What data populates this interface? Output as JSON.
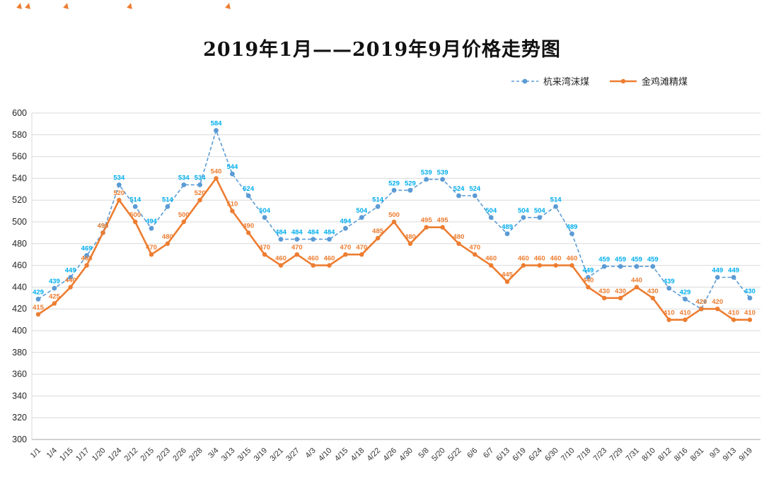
{
  "top_markers": {
    "color": "#ED7D31",
    "positions": [
      24,
      36,
      90,
      180,
      319
    ]
  },
  "chart_data": {
    "type": "line",
    "title": "2019年1月——2019年9月价格走势图",
    "categories": [
      "1/1",
      "1/4",
      "1/15",
      "1/17",
      "1/20",
      "1/24",
      "2/12",
      "2/15",
      "2/23",
      "2/26",
      "2/28",
      "3/4",
      "3/13",
      "3/15",
      "3/19",
      "3/21",
      "3/27",
      "4/3",
      "4/10",
      "4/15",
      "4/18",
      "4/22",
      "4/26",
      "4/30",
      "5/8",
      "5/20",
      "5/22",
      "6/6",
      "6/7",
      "6/13",
      "6/19",
      "6/24",
      "6/30",
      "7/10",
      "7/18",
      "7/23",
      "7/29",
      "7/31",
      "8/10",
      "8/12",
      "8/16",
      "8/31",
      "9/3",
      "9/13",
      "9/19"
    ],
    "series": [
      {
        "name": "杭来湾沫煤",
        "line_color": "#5B9BD5",
        "label_color": "#00AEEF",
        "line_style": "dashed",
        "marker": "circle",
        "values": [
          429,
          439,
          449,
          469,
          490,
          534,
          514,
          494,
          514,
          534,
          534,
          584,
          544,
          524,
          504,
          484,
          484,
          484,
          484,
          494,
          504,
          514,
          529,
          529,
          539,
          539,
          524,
          524,
          504,
          489,
          504,
          504,
          514,
          489,
          449,
          459,
          459,
          459,
          459,
          439,
          429,
          420,
          449,
          449,
          430
        ]
      },
      {
        "name": "金鸡滩精煤",
        "line_color": "#ED7D31",
        "label_color": "#ED7D31",
        "line_style": "solid",
        "marker": "circle",
        "values": [
          415,
          425,
          440,
          460,
          490,
          520,
          500,
          470,
          480,
          500,
          520,
          540,
          510,
          490,
          470,
          460,
          470,
          460,
          460,
          470,
          470,
          485,
          500,
          480,
          495,
          495,
          480,
          470,
          460,
          445,
          460,
          460,
          460,
          460,
          440,
          430,
          430,
          440,
          430,
          410,
          410,
          420,
          420,
          410,
          410
        ]
      }
    ],
    "ylim": [
      300,
      600
    ],
    "ytick_step": 20,
    "grid": true,
    "legend_position": "top-right",
    "data_labels": true
  }
}
